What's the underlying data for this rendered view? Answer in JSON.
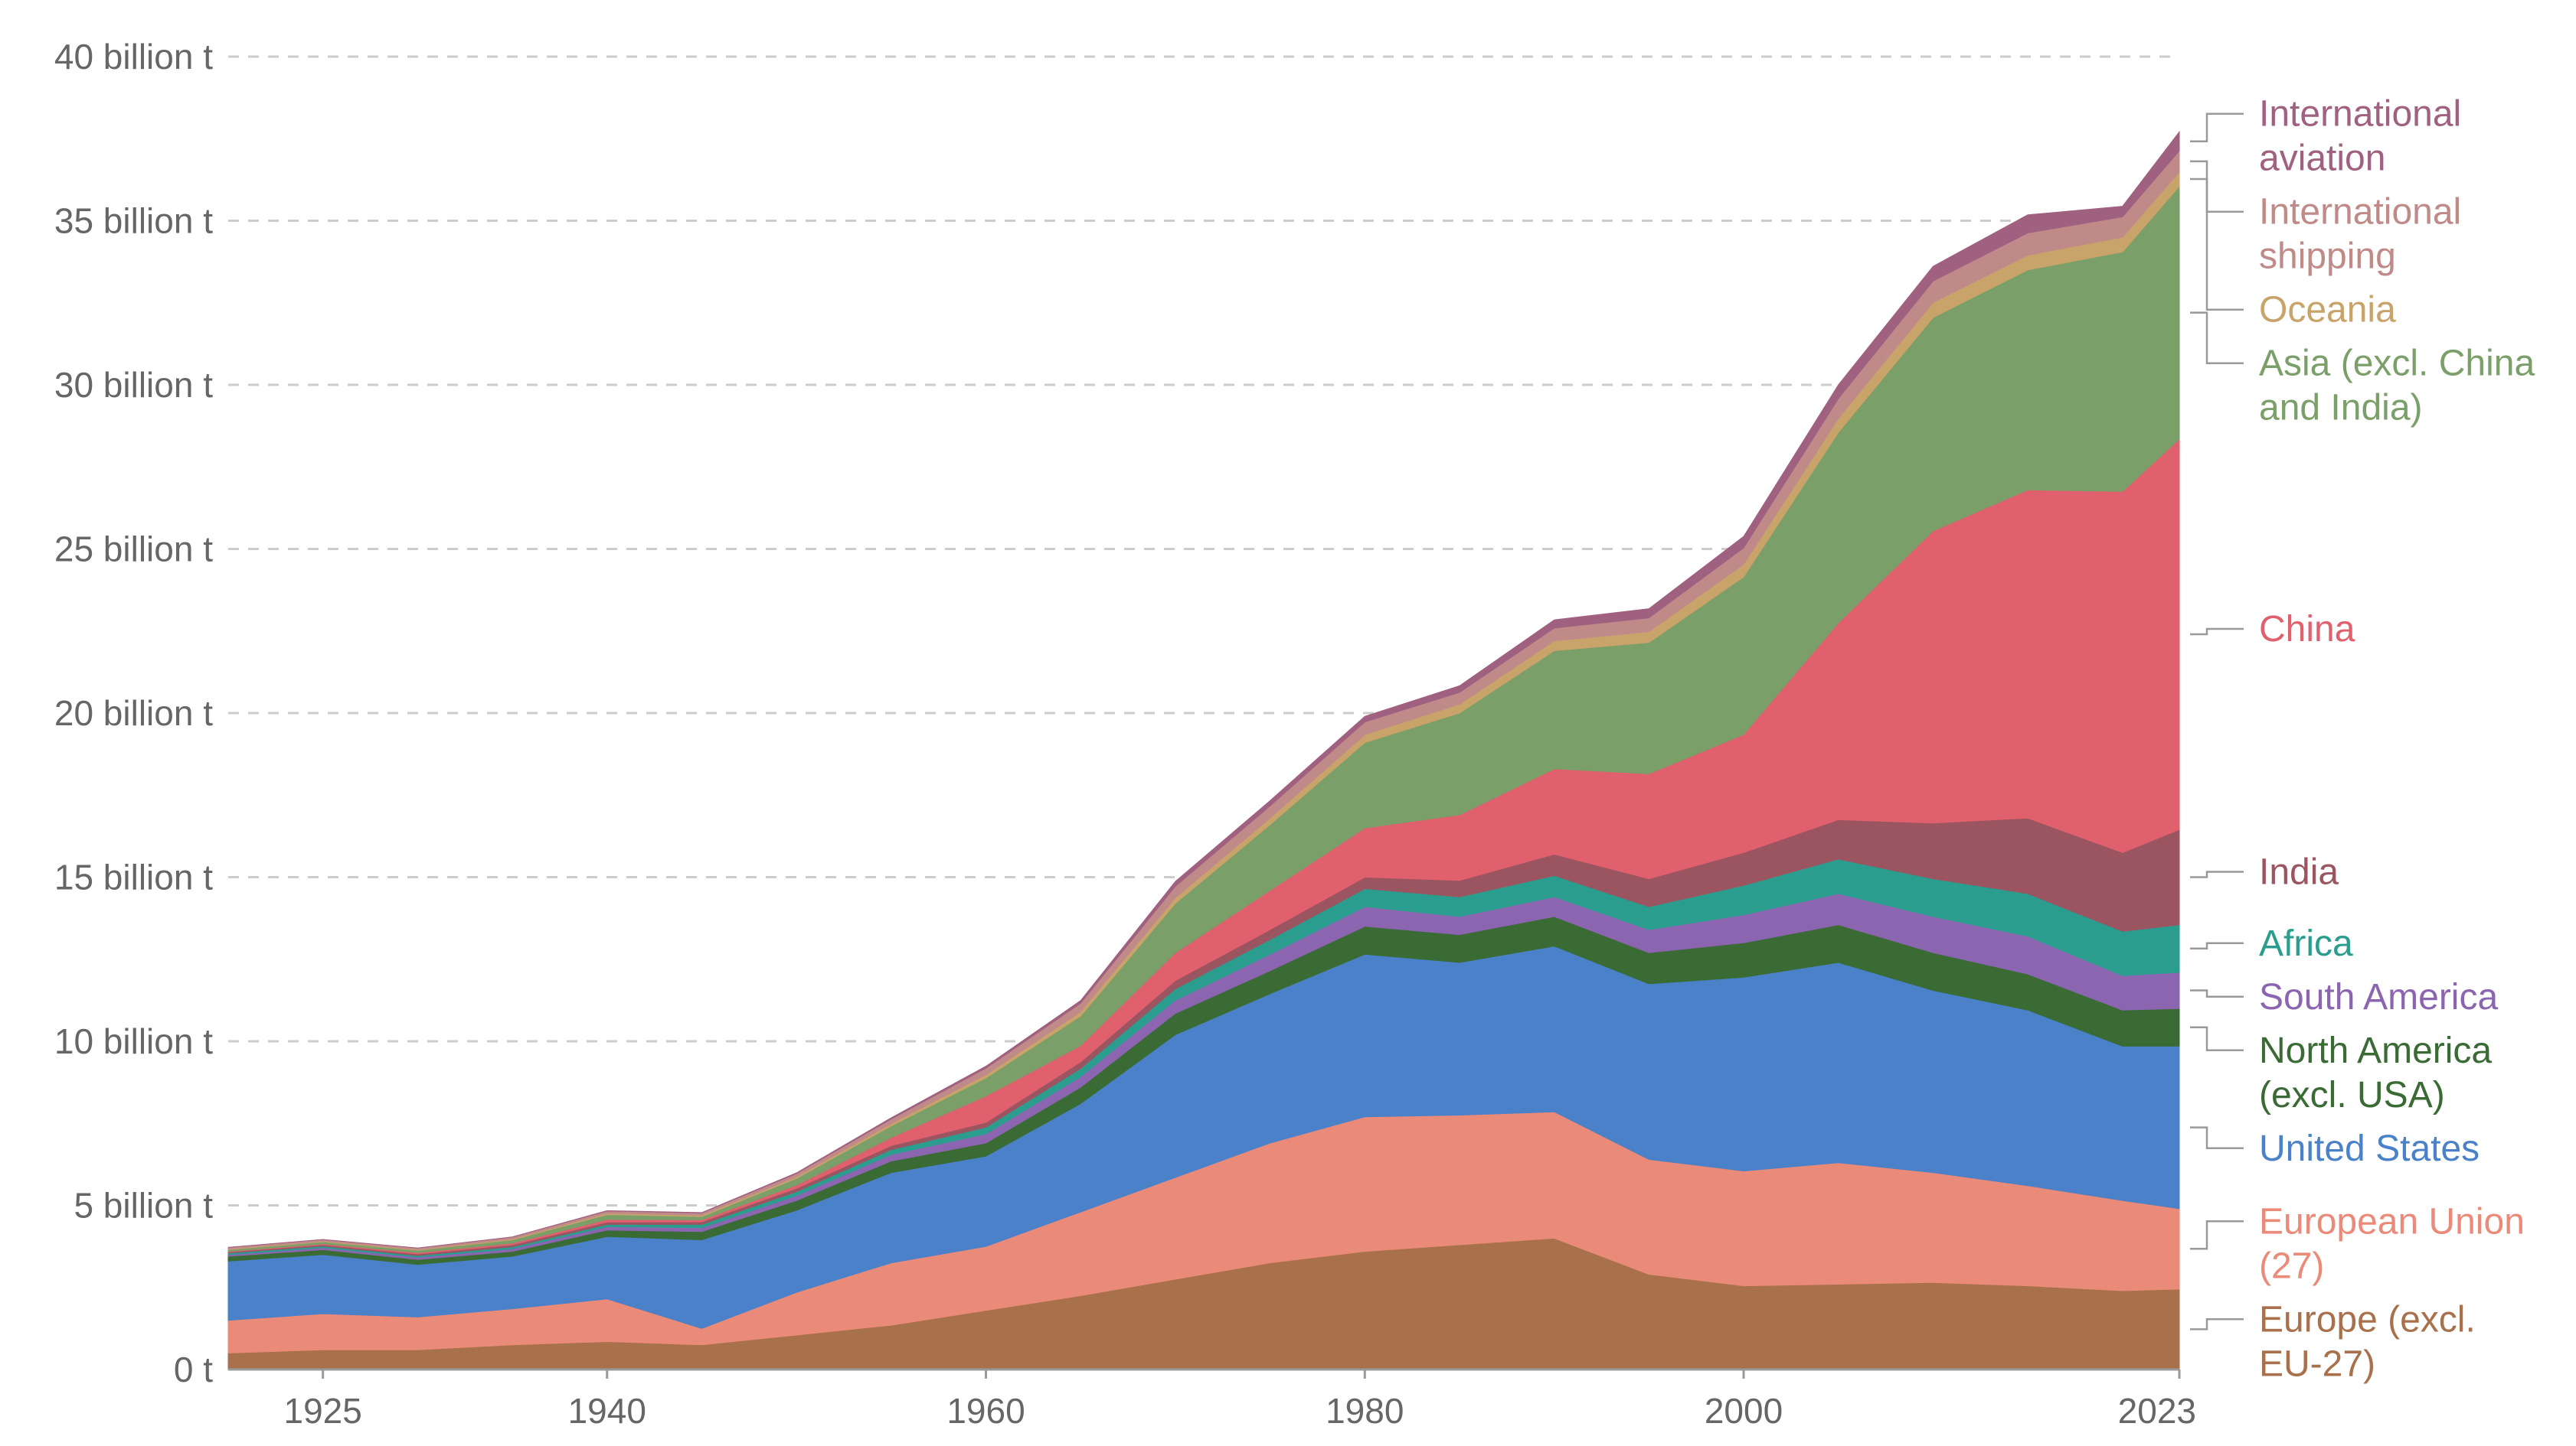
{
  "chart_data": {
    "type": "area",
    "stacked": true,
    "title": "",
    "xlabel": "",
    "ylabel": "",
    "xlim": [
      1920,
      2023
    ],
    "ylim": [
      0,
      40
    ],
    "grid": "horizontal-dashed",
    "legend": "right, direct labels",
    "x_ticks": [
      {
        "value": 1925,
        "label": "1925"
      },
      {
        "value": 1940,
        "label": "1940"
      },
      {
        "value": 1960,
        "label": "1960"
      },
      {
        "value": 1980,
        "label": "1980"
      },
      {
        "value": 2000,
        "label": "2000"
      },
      {
        "value": 2023,
        "label": "2023"
      }
    ],
    "y_ticks": [
      {
        "value": 0,
        "label": "0 t"
      },
      {
        "value": 5,
        "label": "5 billion t"
      },
      {
        "value": 10,
        "label": "10 billion t"
      },
      {
        "value": 15,
        "label": "15 billion t"
      },
      {
        "value": 20,
        "label": "20 billion t"
      },
      {
        "value": 25,
        "label": "25 billion t"
      },
      {
        "value": 30,
        "label": "30 billion t"
      },
      {
        "value": 35,
        "label": "35 billion t"
      },
      {
        "value": 40,
        "label": "40 billion t"
      }
    ],
    "x": [
      1920,
      1925,
      1930,
      1935,
      1940,
      1945,
      1950,
      1955,
      1960,
      1965,
      1970,
      1975,
      1980,
      1985,
      1990,
      1995,
      2000,
      2005,
      2010,
      2015,
      2020,
      2023
    ],
    "series": [
      {
        "name": "Europe (excl. EU-27)",
        "label_lines": [
          "Europe (excl.",
          "EU-27)"
        ],
        "color": "#a8704b",
        "values": [
          0.5,
          0.6,
          0.6,
          0.75,
          0.85,
          0.75,
          1.05,
          1.35,
          1.8,
          2.25,
          2.75,
          3.25,
          3.6,
          3.8,
          4.0,
          2.9,
          2.55,
          2.6,
          2.65,
          2.55,
          2.4,
          2.45
        ]
      },
      {
        "name": "European Union (27)",
        "label_lines": [
          "European Union",
          "(27)"
        ],
        "color": "#ea8a78",
        "values": [
          1.0,
          1.1,
          1.0,
          1.1,
          1.3,
          0.5,
          1.3,
          1.9,
          1.95,
          2.55,
          3.1,
          3.65,
          4.1,
          3.95,
          3.85,
          3.5,
          3.5,
          3.7,
          3.35,
          3.05,
          2.75,
          2.45
        ]
      },
      {
        "name": "United States",
        "label_lines": [
          "United States"
        ],
        "color": "#4a81c8",
        "values": [
          1.8,
          1.8,
          1.6,
          1.6,
          1.9,
          2.7,
          2.5,
          2.75,
          2.75,
          3.3,
          4.35,
          4.55,
          4.95,
          4.65,
          5.05,
          5.35,
          5.9,
          6.1,
          5.55,
          5.35,
          4.7,
          4.95
        ]
      },
      {
        "name": "North America (excl. USA)",
        "label_lines": [
          "North America",
          "(excl. USA)"
        ],
        "color": "#3a6b35",
        "values": [
          0.15,
          0.15,
          0.15,
          0.15,
          0.2,
          0.25,
          0.3,
          0.35,
          0.4,
          0.5,
          0.65,
          0.7,
          0.85,
          0.85,
          0.9,
          0.95,
          1.05,
          1.15,
          1.15,
          1.1,
          1.1,
          1.15
        ]
      },
      {
        "name": "South America",
        "label_lines": [
          "South America"
        ],
        "color": "#8b65b0",
        "values": [
          0.05,
          0.06,
          0.07,
          0.08,
          0.1,
          0.12,
          0.15,
          0.2,
          0.28,
          0.32,
          0.4,
          0.5,
          0.6,
          0.55,
          0.6,
          0.7,
          0.85,
          0.95,
          1.1,
          1.15,
          1.05,
          1.1
        ]
      },
      {
        "name": "Africa",
        "label_lines": [
          "Africa"
        ],
        "color": "#2a9d8f",
        "values": [
          0.05,
          0.05,
          0.05,
          0.06,
          0.07,
          0.1,
          0.12,
          0.15,
          0.2,
          0.25,
          0.35,
          0.45,
          0.55,
          0.6,
          0.65,
          0.7,
          0.9,
          1.05,
          1.15,
          1.3,
          1.35,
          1.45
        ]
      },
      {
        "name": "India",
        "label_lines": [
          "India"
        ],
        "color": "#9b5560",
        "values": [
          0.03,
          0.04,
          0.05,
          0.06,
          0.07,
          0.08,
          0.1,
          0.12,
          0.15,
          0.2,
          0.25,
          0.3,
          0.35,
          0.5,
          0.65,
          0.85,
          1.0,
          1.2,
          1.7,
          2.3,
          2.4,
          2.9
        ]
      },
      {
        "name": "China",
        "label_lines": [
          "China"
        ],
        "color": "#e0606e",
        "values": [
          0.02,
          0.03,
          0.04,
          0.05,
          0.08,
          0.06,
          0.1,
          0.25,
          0.8,
          0.5,
          0.85,
          1.2,
          1.5,
          2.0,
          2.6,
          3.2,
          3.6,
          6.0,
          8.9,
          10.0,
          11.0,
          11.9
        ]
      },
      {
        "name": "Asia (excl. China and India)",
        "label_lines": [
          "Asia (excl. China",
          "and India)"
        ],
        "color": "#7b9f68",
        "values": [
          0.05,
          0.06,
          0.07,
          0.1,
          0.15,
          0.1,
          0.2,
          0.35,
          0.55,
          0.9,
          1.5,
          2.0,
          2.6,
          3.1,
          3.6,
          4.0,
          4.8,
          5.8,
          6.5,
          6.7,
          7.3,
          7.7
        ]
      },
      {
        "name": "Oceania",
        "label_lines": [
          "Oceania"
        ],
        "color": "#c8a36a",
        "values": [
          0.02,
          0.02,
          0.02,
          0.03,
          0.04,
          0.04,
          0.05,
          0.07,
          0.1,
          0.13,
          0.17,
          0.2,
          0.24,
          0.27,
          0.3,
          0.33,
          0.38,
          0.43,
          0.46,
          0.45,
          0.45,
          0.44
        ]
      },
      {
        "name": "International shipping",
        "label_lines": [
          "International",
          "shipping"
        ],
        "color": "#c08a88",
        "values": [
          0.05,
          0.05,
          0.05,
          0.06,
          0.07,
          0.07,
          0.1,
          0.14,
          0.2,
          0.26,
          0.35,
          0.37,
          0.39,
          0.36,
          0.39,
          0.42,
          0.5,
          0.6,
          0.65,
          0.68,
          0.62,
          0.64
        ]
      },
      {
        "name": "International aviation",
        "label_lines": [
          "International",
          "aviation"
        ],
        "color": "#a06080",
        "values": [
          0.0,
          0.0,
          0.0,
          0.0,
          0.01,
          0.01,
          0.02,
          0.04,
          0.06,
          0.08,
          0.15,
          0.16,
          0.17,
          0.2,
          0.25,
          0.28,
          0.35,
          0.42,
          0.45,
          0.55,
          0.32,
          0.58
        ]
      }
    ]
  }
}
